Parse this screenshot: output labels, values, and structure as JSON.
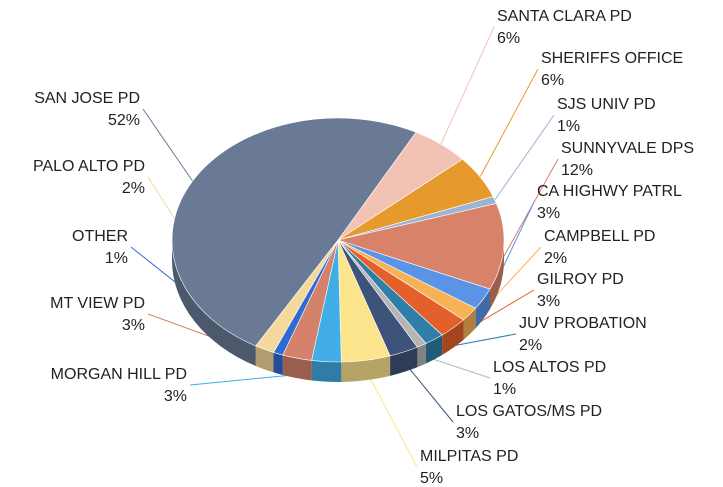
{
  "chart_data": {
    "type": "pie3d",
    "categories": [
      "SANTA CLARA PD",
      "SHERIFFS OFFICE",
      "SJS UNIV PD",
      "SUNNYVALE DPS",
      "CA HIGHWY PATRL",
      "CAMPBELL PD",
      "GILROY PD",
      "JUV PROBATION",
      "LOS ALTOS PD",
      "LOS GATOS/MS PD",
      "MILPITAS PD",
      "MORGAN HILL PD",
      "MT VIEW PD",
      "OTHER",
      "PALO ALTO PD",
      "SAN JOSE PD"
    ],
    "values": [
      6,
      6,
      1,
      12,
      3,
      2,
      3,
      2,
      1,
      3,
      5,
      3,
      3,
      1,
      2,
      52
    ],
    "value_labels": [
      "6%",
      "6%",
      "1%",
      "12%",
      "3%",
      "2%",
      "3%",
      "2%",
      "1%",
      "3%",
      "5%",
      "3%",
      "3%",
      "1%",
      "2%",
      "52%"
    ],
    "colors": [
      "#f2c3b4",
      "#e79a2c",
      "#9db3d4",
      "#d9826a",
      "#5b93e6",
      "#f6b255",
      "#e4602b",
      "#2f7ea8",
      "#b5b5b5",
      "#3e5379",
      "#fce48c",
      "#41ade6",
      "#d5826c",
      "#2f6bd3",
      "#f4d89c",
      "#6a7a94"
    ]
  }
}
